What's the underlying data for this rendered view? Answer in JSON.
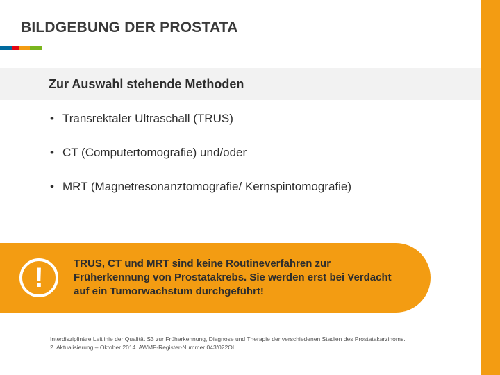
{
  "title": "BILDGEBUNG DER PROSTATA",
  "underline_segments": [
    {
      "color": "#006a9e",
      "width": 17
    },
    {
      "color": "#e30613",
      "width": 11
    },
    {
      "color": "#f39c12",
      "width": 15
    },
    {
      "color": "#7ab51d",
      "width": 17
    }
  ],
  "subtitle": "Zur Auswahl stehende Methoden",
  "bullets": [
    "Transrektaler Ultraschall (TRUS)",
    "CT (Computertomografie) und/oder",
    "MRT (Magnetresonanztomografie/ Kernspintomografie)"
  ],
  "callout": {
    "icon": "!",
    "text": "TRUS, CT und MRT sind keine Routineverfahren zur Früherkennung von Prostatakrebs. Sie werden erst bei Verdacht auf ein Tumorwachstum durchgeführt!",
    "background_color": "#f39c12"
  },
  "footer": {
    "line1": "Interdisziplinäre Leitlinie der Qualität S3 zur Früherkennung, Diagnose und Therapie der verschiedenen Stadien des Prostatakarzinoms.",
    "line2": "2. Aktualisierung – Oktober 2014. AWMF-Register-Nummer 043/022OL."
  },
  "colors": {
    "accent_orange": "#f39c12",
    "text_dark": "#2d2d2d",
    "band_gray": "#f2f2f2"
  }
}
